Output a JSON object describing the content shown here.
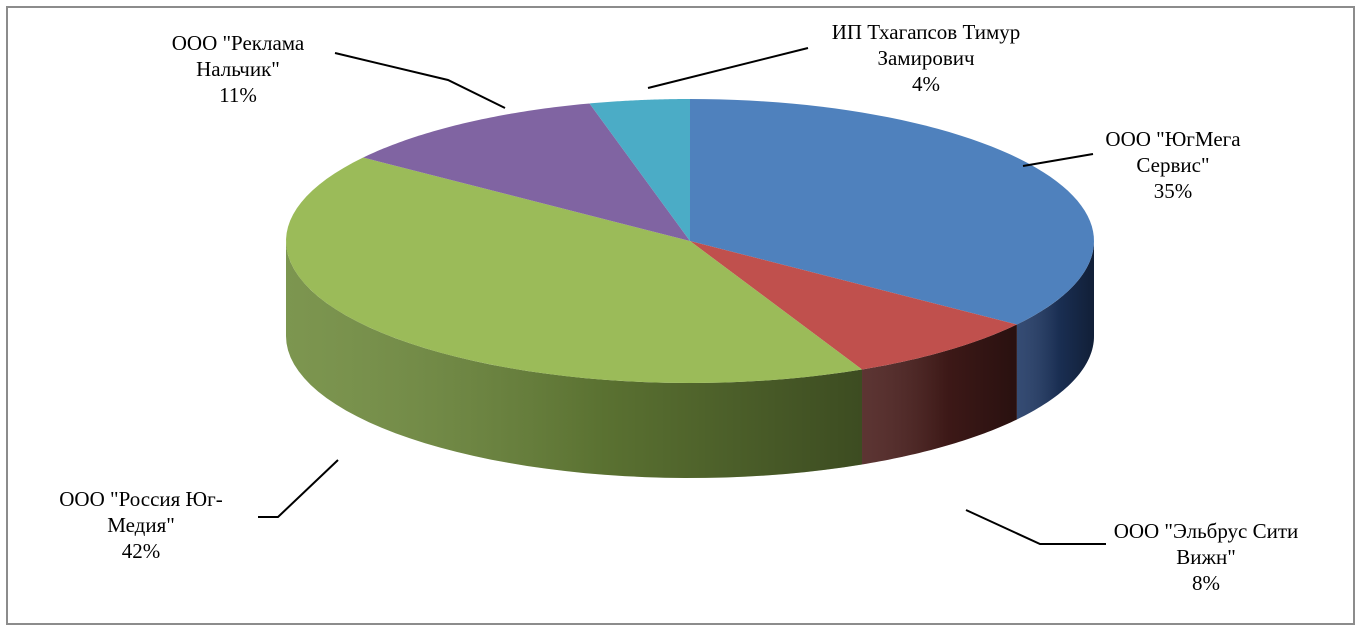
{
  "chart_data": {
    "type": "pie",
    "title": "",
    "slices": [
      {
        "name": "ООО \"ЮгМега Сервис\"",
        "label_lines": [
          "ООО \"ЮгМега",
          "Сервис\""
        ],
        "percent_label": "35%",
        "value": 35,
        "color": "#4F81BD",
        "side_color": "#1F3864"
      },
      {
        "name": "ООО \"Эльбрус Сити Вижн\"",
        "label_lines": [
          "ООО \"Эльбрус Сити",
          "Вижн\""
        ],
        "percent_label": "8%",
        "value": 8,
        "color": "#C0504D",
        "side_color": "#4A1E1C"
      },
      {
        "name": "ООО \"Россия Юг-Медия\"",
        "label_lines": [
          "ООО \"Россия Юг-",
          "Медия\""
        ],
        "percent_label": "42%",
        "value": 42,
        "color": "#9BBB59",
        "side_color": "#6E8A3C"
      },
      {
        "name": "ООО \"Реклама Нальчик\"",
        "label_lines": [
          "ООО \"Реклама",
          "Нальчик\""
        ],
        "percent_label": "11%",
        "value": 11,
        "color": "#8064A2",
        "side_color": "#4A3A60"
      },
      {
        "name": "ИП Тхагапсов Тимур Замирович",
        "label_lines": [
          "ИП Тхагапсов Тимур",
          "Замирович"
        ],
        "percent_label": "4%",
        "value": 4,
        "color": "#4BACC6",
        "side_color": "#2A6A7C"
      }
    ],
    "legend": "none",
    "style": "3d-pie"
  }
}
